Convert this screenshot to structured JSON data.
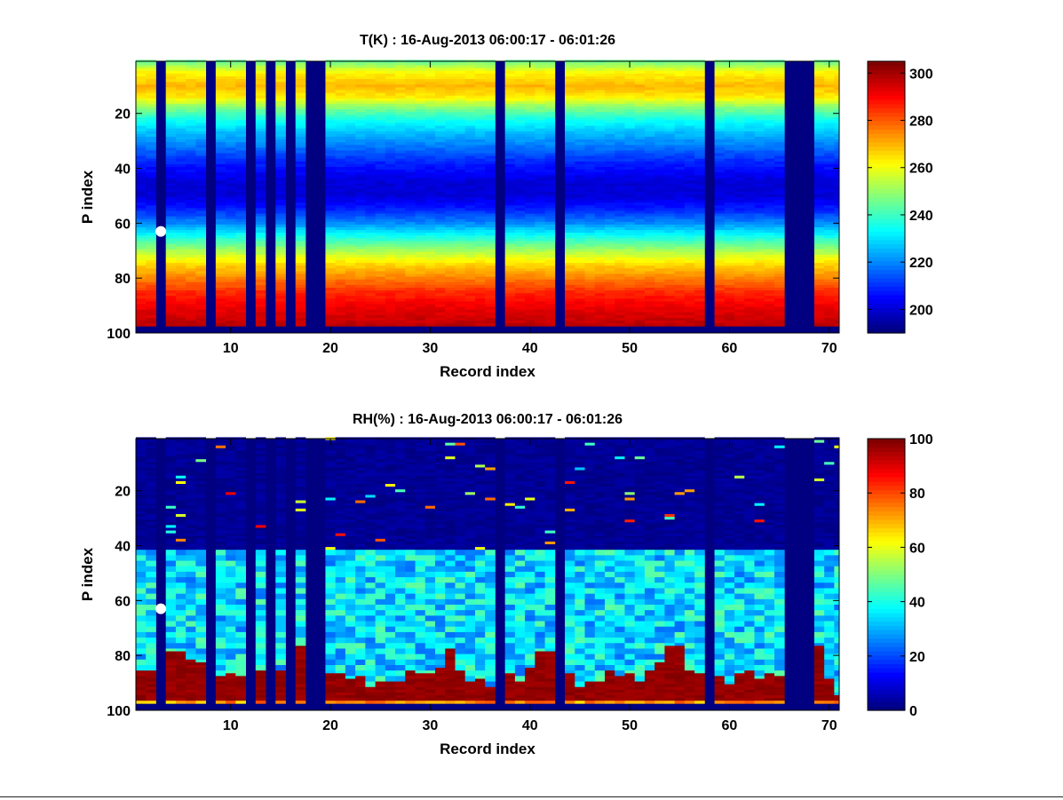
{
  "chart_data": [
    {
      "type": "heatmap",
      "title": "T(K) : 16-Aug-2013 06:00:17 - 06:01:26",
      "xlabel": "Record index",
      "ylabel": "P index",
      "xlim": [
        0.5,
        71
      ],
      "ylim": [
        1,
        100
      ],
      "y_reversed": true,
      "x_ticks": [
        10,
        20,
        30,
        40,
        50,
        60,
        70
      ],
      "y_ticks": [
        20,
        40,
        60,
        80,
        100
      ],
      "colorbar": {
        "min": 190,
        "max": 305,
        "ticks": [
          200,
          220,
          240,
          260,
          280,
          300
        ]
      },
      "gap_records": [
        3,
        8,
        12,
        14,
        16,
        18,
        19,
        37,
        43,
        58,
        66,
        67,
        68
      ],
      "valid_p_range": [
        1,
        97
      ],
      "profile": {
        "p_index": [
          1,
          5,
          10,
          14,
          18,
          22,
          27,
          32,
          38,
          45,
          50,
          55,
          60,
          65,
          70,
          75,
          80,
          85,
          90,
          97
        ],
        "value": [
          245,
          262,
          270,
          264,
          248,
          236,
          226,
          218,
          208,
          200,
          200,
          208,
          220,
          236,
          252,
          266,
          276,
          286,
          292,
          298
        ]
      },
      "marker": {
        "record": 3,
        "p_index": 63
      }
    },
    {
      "type": "heatmap",
      "title": "RH(%) : 16-Aug-2013 06:00:17 - 06:01:26",
      "xlabel": "Record index",
      "ylabel": "P index",
      "xlim": [
        0.5,
        71
      ],
      "ylim": [
        1,
        100
      ],
      "y_reversed": true,
      "x_ticks": [
        10,
        20,
        30,
        40,
        50,
        60,
        70
      ],
      "y_ticks": [
        20,
        40,
        60,
        80,
        100
      ],
      "colorbar": {
        "min": 0,
        "max": 100,
        "ticks": [
          0,
          20,
          40,
          60,
          80,
          100
        ]
      },
      "gap_records": [
        3,
        8,
        12,
        14,
        16,
        18,
        19,
        37,
        43,
        58,
        66,
        67,
        68
      ],
      "valid_p_range": [
        1,
        97
      ],
      "dry_above_p": 42,
      "moist_mean": 35,
      "moist_spread": 12,
      "saturated_layer_top_p": {
        "1": 86,
        "2": 86,
        "4": 79,
        "5": 79,
        "6": 82,
        "7": 83,
        "9": 88,
        "10": 87,
        "11": 88,
        "13": 86,
        "15": 86,
        "17": 77,
        "20": 87,
        "21": 87,
        "22": 89,
        "23": 88,
        "24": 92,
        "25": 90,
        "26": 90,
        "27": 90,
        "28": 86,
        "29": 87,
        "30": 87,
        "31": 85,
        "32": 78,
        "33": 86,
        "34": 90,
        "35": 89,
        "36": 92,
        "38": 87,
        "39": 90,
        "40": 85,
        "41": 79,
        "42": 79,
        "44": 87,
        "45": 92,
        "46": 90,
        "47": 90,
        "48": 86,
        "49": 88,
        "50": 87,
        "51": 90,
        "52": 86,
        "53": 83,
        "54": 77,
        "55": 77,
        "56": 86,
        "57": 87,
        "59": 88,
        "60": 91,
        "61": 87,
        "62": 86,
        "63": 89,
        "64": 87,
        "65": 88,
        "69": 77,
        "70": 89
      },
      "marker": {
        "record": 3,
        "p_index": 63
      }
    }
  ]
}
